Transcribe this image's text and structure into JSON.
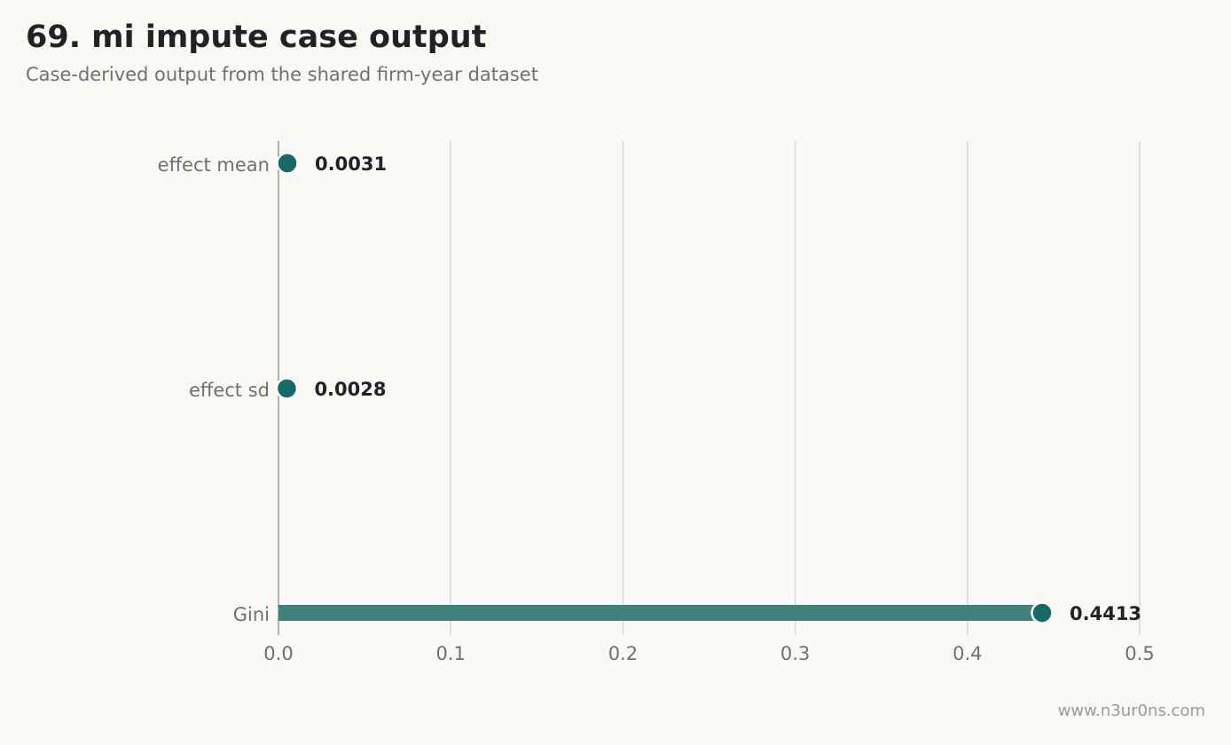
{
  "header": {
    "title": "69. mi impute case output",
    "subtitle": "Case-derived output from the shared firm-year dataset"
  },
  "footer": {
    "watermark": "www.n3ur0ns.com"
  },
  "colors": {
    "accent": "#176b66",
    "bar": "#3f817b",
    "grid": "#d9d9d6",
    "axis": "#9a9a9a",
    "label": "#707070",
    "value": "#222222",
    "background": "#faf9f6"
  },
  "chart_data": {
    "type": "bar",
    "orientation": "horizontal",
    "style": "lollipop",
    "categories": [
      "effect mean",
      "effect sd",
      "Gini"
    ],
    "values": [
      0.0031,
      0.0028,
      0.4413
    ],
    "value_labels": [
      "0.0031",
      "0.0028",
      "0.4413"
    ],
    "xlim": [
      0,
      0.5
    ],
    "xticks": [
      0.0,
      0.1,
      0.2,
      0.3,
      0.4,
      0.5
    ],
    "xtick_labels": [
      "0.0",
      "0.1",
      "0.2",
      "0.3",
      "0.4",
      "0.5"
    ],
    "grid": "vertical",
    "legend": "none"
  }
}
